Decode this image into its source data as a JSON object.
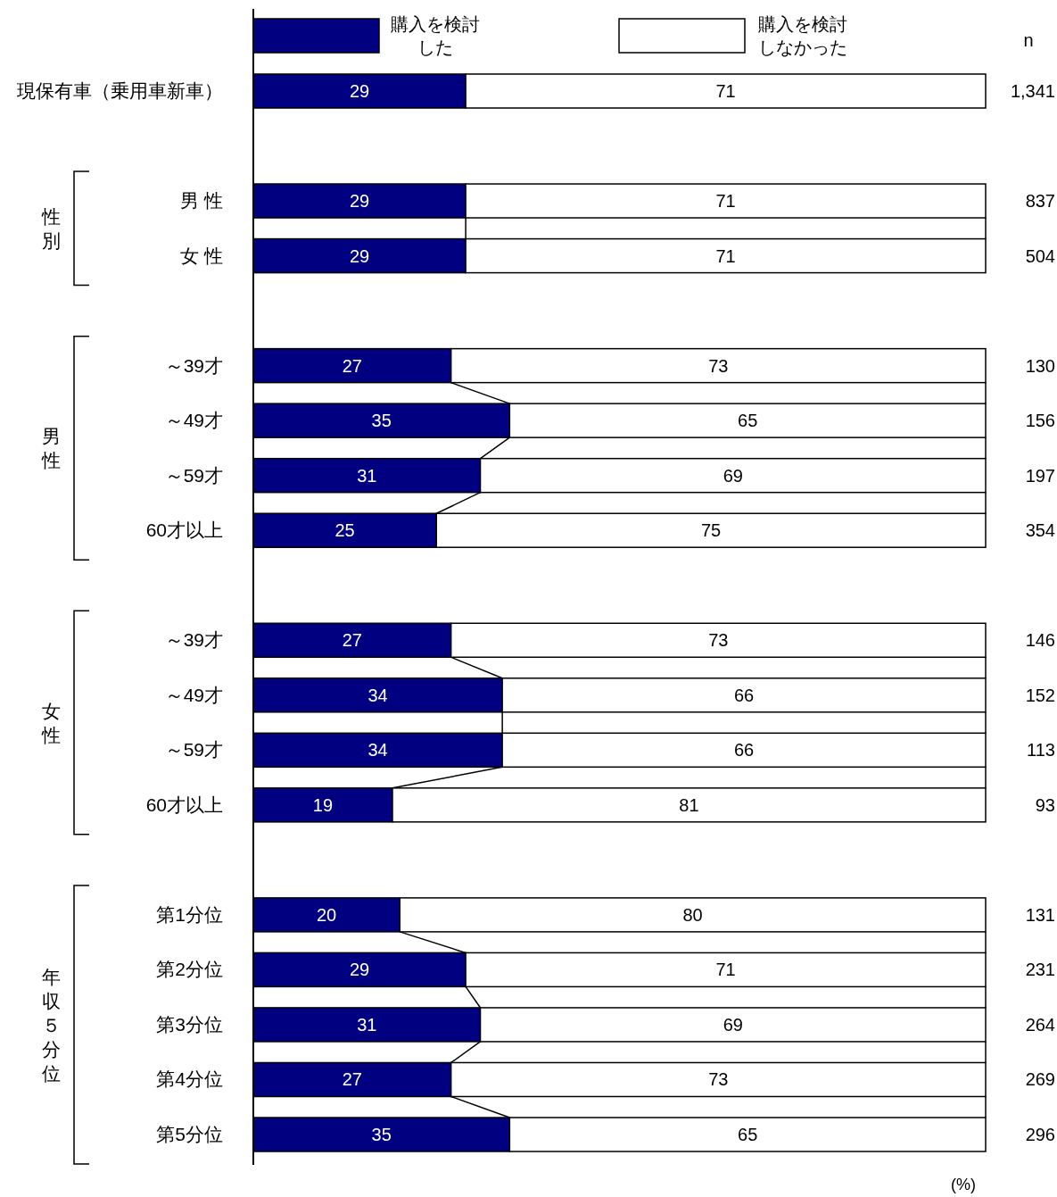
{
  "chart_data": {
    "type": "bar",
    "orientation": "horizontal",
    "stacked": true,
    "data_labels": true,
    "legend": "top",
    "xlim": [
      0,
      100
    ],
    "categories": [
      "現保有車（乗用車新車）",
      null,
      "男 性",
      "女 性",
      null,
      "～39才",
      "～49才",
      "～59才",
      "60才以上",
      null,
      "～39才",
      "～49才",
      "～59才",
      "60才以上",
      null,
      "第1分位",
      "第2分位",
      "第3分位",
      "第4分位",
      "第5分位"
    ],
    "series": [
      {
        "name": "購入を検討した",
        "color": "#000080",
        "values": [
          29,
          null,
          29,
          29,
          null,
          27,
          35,
          31,
          25,
          null,
          27,
          34,
          34,
          19,
          null,
          20,
          29,
          31,
          27,
          35
        ]
      },
      {
        "name": "購入を検討しなかった",
        "color": "#ffffff",
        "values": [
          71,
          null,
          71,
          71,
          null,
          73,
          65,
          69,
          75,
          null,
          73,
          66,
          66,
          81,
          null,
          80,
          71,
          69,
          73,
          65
        ]
      }
    ],
    "annotations": [
      "n",
      "1,341",
      "837",
      "504",
      "130",
      "156",
      "197",
      "354",
      "146",
      "152",
      "113",
      "93",
      "131",
      "231",
      "264",
      "269",
      "296",
      "性別",
      "男性",
      "女性",
      "年収５分位",
      "(%)"
    ]
  }
}
